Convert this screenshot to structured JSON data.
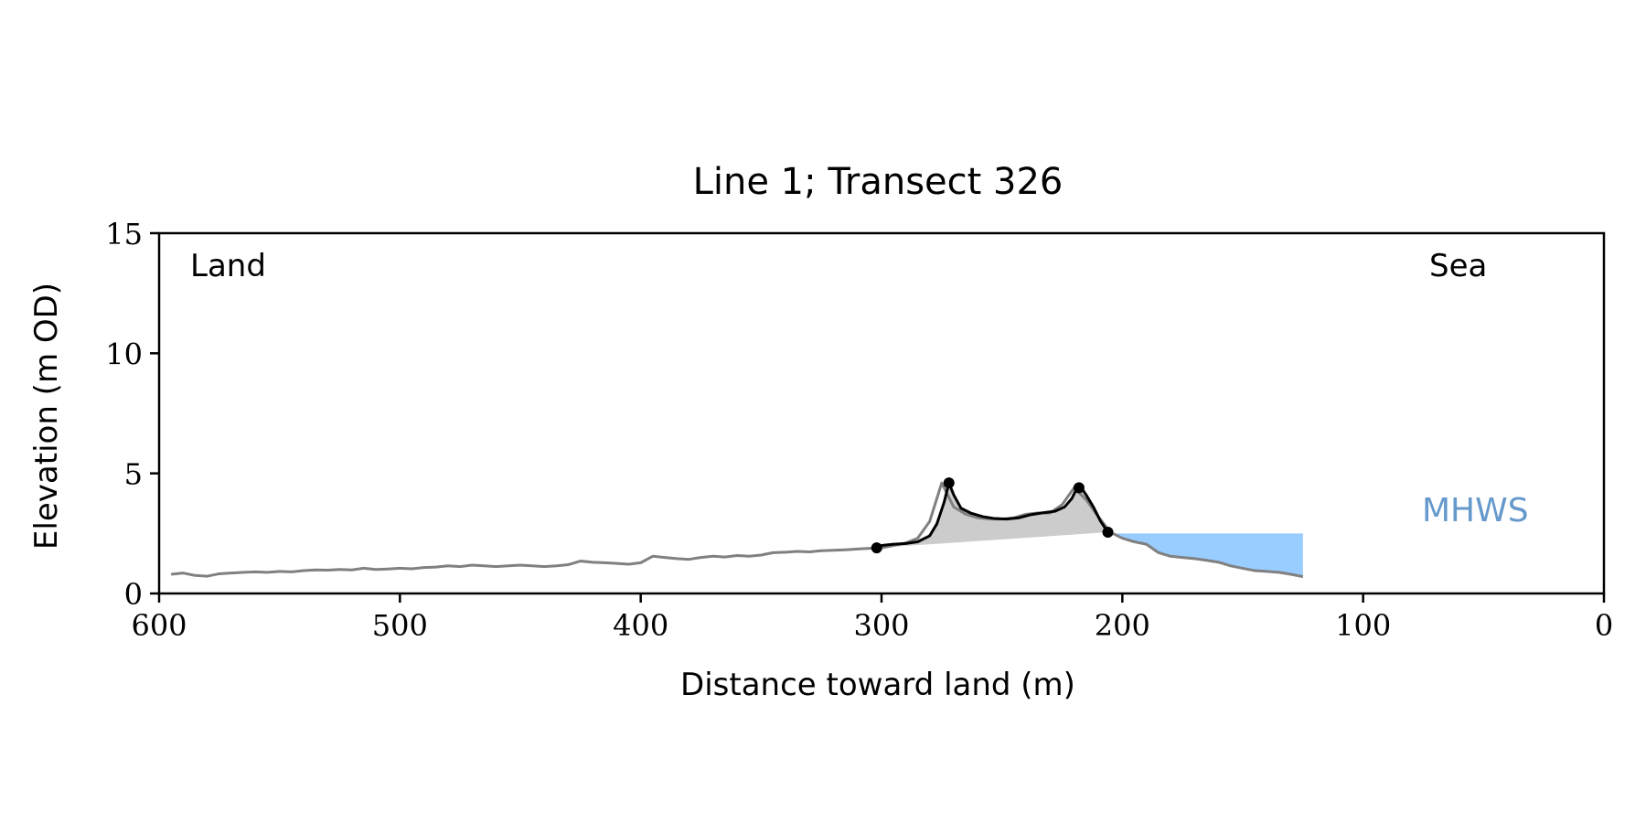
{
  "chart_data": {
    "type": "line",
    "title": "Line 1; Transect 326",
    "xlabel": "Distance toward land (m)",
    "ylabel": "Elevation (m OD)",
    "xlim": [
      600,
      0
    ],
    "ylim": [
      0,
      15
    ],
    "xticks": [
      600,
      500,
      400,
      300,
      200,
      100,
      0
    ],
    "yticks": [
      0,
      5,
      10,
      15
    ],
    "grid": false,
    "annotations": {
      "land": "Land",
      "sea": "Sea",
      "mhws": "MHWS"
    },
    "mhws_level": 2.5,
    "colors": {
      "profile": "#808080",
      "dune": "#000000",
      "dune_fill": "#cccccc",
      "water": "#99ccff",
      "mhws_text": "#6699cc"
    },
    "series": [
      {
        "x": [
          595,
          590,
          585,
          580,
          575,
          570,
          565,
          560,
          555,
          550,
          545,
          540,
          535,
          530,
          525,
          520,
          515,
          510,
          505,
          500,
          495,
          490,
          485,
          480,
          475,
          470,
          465,
          460,
          455,
          450,
          445,
          440,
          435,
          430,
          425,
          420,
          415,
          410,
          405,
          400,
          395,
          390,
          385,
          380,
          375,
          370,
          365,
          360,
          355,
          350,
          345,
          340,
          335,
          330,
          325,
          320,
          315,
          310,
          305,
          300,
          295,
          290,
          285,
          280,
          275,
          270,
          265,
          260,
          255,
          250,
          245,
          240,
          235,
          230,
          225,
          220,
          215,
          210,
          205,
          200,
          195,
          190,
          185,
          180,
          175,
          170,
          165,
          160,
          155,
          150,
          145,
          140,
          135,
          130,
          125
        ],
        "y": [
          0.8,
          0.85,
          0.75,
          0.72,
          0.82,
          0.85,
          0.88,
          0.9,
          0.88,
          0.92,
          0.9,
          0.95,
          0.98,
          0.97,
          1.0,
          0.98,
          1.05,
          1.0,
          1.02,
          1.05,
          1.03,
          1.08,
          1.1,
          1.15,
          1.12,
          1.18,
          1.15,
          1.12,
          1.15,
          1.18,
          1.15,
          1.12,
          1.15,
          1.2,
          1.35,
          1.3,
          1.28,
          1.25,
          1.22,
          1.28,
          1.55,
          1.5,
          1.45,
          1.42,
          1.5,
          1.55,
          1.52,
          1.58,
          1.55,
          1.6,
          1.7,
          1.72,
          1.75,
          1.73,
          1.78,
          1.8,
          1.82,
          1.85,
          1.88,
          1.9,
          2.0,
          2.1,
          2.3,
          3.0,
          4.6,
          3.6,
          3.3,
          3.15,
          3.1,
          3.1,
          3.15,
          3.3,
          3.35,
          3.35,
          3.7,
          4.4,
          3.9,
          3.2,
          2.55,
          2.3,
          2.15,
          2.05,
          1.7,
          1.55,
          1.5,
          1.45,
          1.38,
          1.3,
          1.15,
          1.05,
          0.95,
          0.92,
          0.88,
          0.8,
          0.7
        ]
      }
    ],
    "dune": {
      "x": [
        302,
        300,
        295,
        290,
        285,
        280,
        277,
        274,
        272,
        270,
        267,
        263,
        258,
        253,
        248,
        243,
        238,
        233,
        228,
        224,
        221,
        219,
        217,
        215,
        212,
        209,
        207,
        206
      ],
      "y": [
        1.9,
        2.0,
        2.05,
        2.08,
        2.15,
        2.4,
        2.9,
        3.8,
        4.6,
        4.1,
        3.55,
        3.35,
        3.2,
        3.12,
        3.1,
        3.15,
        3.28,
        3.36,
        3.42,
        3.6,
        3.95,
        4.35,
        4.4,
        4.1,
        3.6,
        3.0,
        2.7,
        2.55
      ]
    },
    "dune_points": {
      "x": [
        302,
        272,
        218,
        206
      ],
      "y": [
        1.9,
        4.6,
        4.4,
        2.55
      ]
    },
    "water": {
      "x": [
        206,
        200,
        195,
        190,
        185,
        180,
        175,
        170,
        165,
        160,
        155,
        150,
        145,
        140,
        135,
        130,
        125
      ],
      "y": [
        2.55,
        2.3,
        2.15,
        2.05,
        1.7,
        1.55,
        1.5,
        1.45,
        1.38,
        1.3,
        1.15,
        1.05,
        0.95,
        0.92,
        0.88,
        0.8,
        0.7
      ]
    }
  }
}
